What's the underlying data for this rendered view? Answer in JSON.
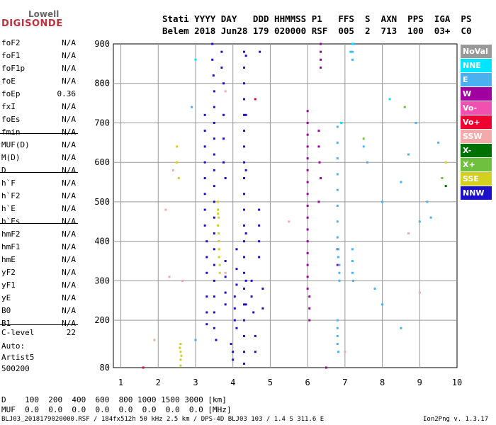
{
  "logo": {
    "line1": "Lowell",
    "line2": "DIGISONDE"
  },
  "header": {
    "line1": "Stati YYYY DAY   DDD HHMMSS P1   FFS  S  AXN  PPS  IGA  PS",
    "line2": "Belem 2018 Jun28 179 020000 RSF  005  2  713  100  03+  C0"
  },
  "params": [
    {
      "name": "foF2",
      "value": "N/A"
    },
    {
      "name": "foF1",
      "value": "N/A"
    },
    {
      "name": "foF1p",
      "value": "N/A"
    },
    {
      "name": "foE",
      "value": "N/A"
    },
    {
      "name": "foEp",
      "value": "0.36"
    },
    {
      "name": "fxI",
      "value": "N/A"
    },
    {
      "name": "foEs",
      "value": "N/A"
    },
    {
      "name": "fmin",
      "value": "N/A"
    },
    {
      "name": "MUF(D)",
      "value": "N/A"
    },
    {
      "name": "M(D)",
      "value": "N/A"
    },
    {
      "name": "D",
      "value": "N/A"
    },
    {
      "name": "h`F",
      "value": "N/A"
    },
    {
      "name": "h`F2",
      "value": "N/A"
    },
    {
      "name": "h`E",
      "value": "N/A"
    },
    {
      "name": "h`Es",
      "value": "N/A"
    },
    {
      "name": "hmF2",
      "value": "N/A"
    },
    {
      "name": "hmF1",
      "value": "N/A"
    },
    {
      "name": "hmE",
      "value": "N/A"
    },
    {
      "name": "yF2",
      "value": "N/A"
    },
    {
      "name": "yF1",
      "value": "N/A"
    },
    {
      "name": "yE",
      "value": "N/A"
    },
    {
      "name": "B0",
      "value": "N/A"
    },
    {
      "name": "B1",
      "value": "N/A"
    },
    {
      "name": "C-level",
      "value": "22"
    }
  ],
  "autoscaling": {
    "line1": "Auto:",
    "line2": "Artist5",
    "line3": "500200"
  },
  "legend": [
    {
      "label": "NoVal",
      "color": "#999999"
    },
    {
      "label": "NNE",
      "color": "#00e5ff"
    },
    {
      "label": "E",
      "color": "#4ab0f0"
    },
    {
      "label": "W",
      "color": "#a000a0"
    },
    {
      "label": "Vo-",
      "color": "#f050b0"
    },
    {
      "label": "Vo+",
      "color": "#ee0030"
    },
    {
      "label": "SSW",
      "color": "#f4aaaa"
    },
    {
      "label": "X-",
      "color": "#007000"
    },
    {
      "label": "X+",
      "color": "#70c040"
    },
    {
      "label": "SSE",
      "color": "#d4d020"
    },
    {
      "label": "NNW",
      "color": "#1c10c8"
    }
  ],
  "footer": {
    "d_line": "D    100  200  400  600  800 1000 1500 3000 [km]",
    "muf_line": "MUF  0.0  0.0  0.0  0.0  0.0  0.0  0.0  0.0 [MHz]",
    "file_info": "BLJ03_2018179020000.RSF / 184fx512h 50 kHz 2.5 km / DPS-4D BLJ03 103 / 1.4 S 311.6 E",
    "version": "Ion2Png v. 1.3.17"
  },
  "chart_data": {
    "type": "scatter",
    "xlim": [
      0.8,
      10
    ],
    "ylim": [
      80,
      900
    ],
    "x_ticks": [
      "1",
      "2",
      "3",
      "4",
      "5",
      "6",
      "7",
      "8",
      "9",
      "10"
    ],
    "y_ticks": [
      "80",
      "200",
      "300",
      "400",
      "500",
      "600",
      "700",
      "800",
      "900"
    ],
    "grid": true,
    "series": [
      {
        "name": "NNW",
        "color": "#1c10c8",
        "points": [
          [
            3.25,
            720
          ],
          [
            3.25,
            680
          ],
          [
            3.25,
            640
          ],
          [
            3.25,
            600
          ],
          [
            3.25,
            560
          ],
          [
            3.25,
            520
          ],
          [
            3.25,
            480
          ],
          [
            3.25,
            440
          ],
          [
            3.3,
            400
          ],
          [
            3.3,
            360
          ],
          [
            3.3,
            320
          ],
          [
            3.3,
            260
          ],
          [
            3.3,
            220
          ],
          [
            3.3,
            190
          ],
          [
            3.45,
            900
          ],
          [
            3.45,
            860
          ],
          [
            3.48,
            820
          ],
          [
            3.5,
            780
          ],
          [
            3.5,
            740
          ],
          [
            3.5,
            700
          ],
          [
            3.5,
            660
          ],
          [
            3.5,
            620
          ],
          [
            3.5,
            580
          ],
          [
            3.5,
            540
          ],
          [
            3.5,
            500
          ],
          [
            3.5,
            460
          ],
          [
            3.5,
            420
          ],
          [
            3.5,
            380
          ],
          [
            3.5,
            340
          ],
          [
            3.5,
            300
          ],
          [
            3.5,
            260
          ],
          [
            3.5,
            220
          ],
          [
            3.5,
            180
          ],
          [
            3.55,
            150
          ],
          [
            3.7,
            880
          ],
          [
            3.7,
            840
          ],
          [
            3.75,
            800
          ],
          [
            3.75,
            720
          ],
          [
            3.75,
            660
          ],
          [
            3.75,
            600
          ],
          [
            3.8,
            560
          ],
          [
            3.8,
            350
          ],
          [
            3.8,
            310
          ],
          [
            3.8,
            270
          ],
          [
            3.8,
            240
          ],
          [
            3.95,
            140
          ],
          [
            4.0,
            120
          ],
          [
            4.0,
            100
          ],
          [
            4.05,
            260
          ],
          [
            4.05,
            230
          ],
          [
            4.05,
            200
          ],
          [
            4.1,
            180
          ],
          [
            4.1,
            380
          ],
          [
            4.1,
            330
          ],
          [
            4.1,
            290
          ],
          [
            4.3,
            880
          ],
          [
            4.3,
            840
          ],
          [
            4.3,
            800
          ],
          [
            4.3,
            760
          ],
          [
            4.3,
            720
          ],
          [
            4.3,
            680
          ],
          [
            4.3,
            640
          ],
          [
            4.3,
            600
          ],
          [
            4.3,
            560
          ],
          [
            4.3,
            520
          ],
          [
            4.3,
            480
          ],
          [
            4.3,
            440
          ],
          [
            4.3,
            400
          ],
          [
            4.3,
            360
          ],
          [
            4.3,
            320
          ],
          [
            4.3,
            280
          ],
          [
            4.3,
            240
          ],
          [
            4.3,
            200
          ],
          [
            4.3,
            160
          ],
          [
            4.3,
            120
          ],
          [
            4.3,
            90
          ],
          [
            4.35,
            870
          ],
          [
            4.35,
            720
          ],
          [
            4.35,
            580
          ],
          [
            4.35,
            420
          ],
          [
            4.35,
            300
          ],
          [
            4.35,
            240
          ],
          [
            4.5,
            300
          ],
          [
            4.5,
            260
          ],
          [
            4.55,
            220
          ],
          [
            4.6,
            160
          ],
          [
            4.6,
            120
          ],
          [
            4.7,
            480
          ],
          [
            4.7,
            440
          ],
          [
            4.7,
            400
          ],
          [
            4.7,
            360
          ],
          [
            4.72,
            880
          ],
          [
            4.8,
            280
          ],
          [
            4.8,
            230
          ]
        ]
      },
      {
        "name": "SSE",
        "color": "#d4d020",
        "points": [
          [
            3.6,
            500
          ],
          [
            3.6,
            470
          ],
          [
            3.6,
            440
          ],
          [
            3.62,
            420
          ],
          [
            3.62,
            400
          ],
          [
            3.63,
            380
          ],
          [
            3.63,
            360
          ],
          [
            3.65,
            340
          ],
          [
            3.65,
            320
          ],
          [
            3.6,
            480
          ],
          [
            3.62,
            460
          ],
          [
            2.5,
            640
          ],
          [
            2.5,
            600
          ],
          [
            2.55,
            560
          ],
          [
            2.6,
            140
          ],
          [
            2.6,
            120
          ],
          [
            2.6,
            100
          ],
          [
            2.6,
            85
          ],
          [
            2.62,
            110
          ],
          [
            2.58,
            130
          ],
          [
            9.7,
            600
          ]
        ]
      },
      {
        "name": "W",
        "color": "#a000a0",
        "points": [
          [
            6.0,
            730
          ],
          [
            6.0,
            700
          ],
          [
            6.0,
            670
          ],
          [
            6.0,
            640
          ],
          [
            6.0,
            610
          ],
          [
            6.0,
            580
          ],
          [
            6.0,
            550
          ],
          [
            6.0,
            520
          ],
          [
            6.0,
            490
          ],
          [
            6.0,
            460
          ],
          [
            6.0,
            430
          ],
          [
            6.0,
            400
          ],
          [
            6.0,
            370
          ],
          [
            6.0,
            340
          ],
          [
            6.0,
            310
          ],
          [
            6.0,
            280
          ],
          [
            6.05,
            260
          ],
          [
            6.05,
            230
          ],
          [
            6.05,
            200
          ],
          [
            6.3,
            680
          ],
          [
            6.3,
            640
          ],
          [
            6.32,
            600
          ],
          [
            6.35,
            560
          ],
          [
            6.35,
            880
          ],
          [
            6.35,
            860
          ],
          [
            6.35,
            840
          ],
          [
            6.35,
            900
          ],
          [
            6.5,
            80
          ],
          [
            6.8,
            340
          ],
          [
            6.8,
            380
          ],
          [
            6.3,
            500
          ]
        ]
      },
      {
        "name": "E",
        "color": "#4ab0f0",
        "points": [
          [
            6.8,
            690
          ],
          [
            6.8,
            650
          ],
          [
            6.8,
            610
          ],
          [
            6.8,
            570
          ],
          [
            6.8,
            530
          ],
          [
            6.8,
            490
          ],
          [
            6.8,
            450
          ],
          [
            6.8,
            410
          ],
          [
            6.82,
            380
          ],
          [
            6.82,
            360
          ],
          [
            6.85,
            340
          ],
          [
            6.85,
            320
          ],
          [
            6.85,
            300
          ],
          [
            6.8,
            200
          ],
          [
            6.8,
            180
          ],
          [
            6.8,
            160
          ],
          [
            6.8,
            140
          ],
          [
            6.82,
            120
          ],
          [
            7.2,
            380
          ],
          [
            7.2,
            350
          ],
          [
            7.2,
            320
          ],
          [
            7.22,
            300
          ],
          [
            7.2,
            880
          ],
          [
            7.2,
            860
          ],
          [
            7.25,
            900
          ],
          [
            7.5,
            640
          ],
          [
            7.6,
            600
          ],
          [
            8.0,
            500
          ],
          [
            8.5,
            550
          ],
          [
            8.7,
            620
          ],
          [
            9.0,
            450
          ],
          [
            9.2,
            500
          ],
          [
            9.3,
            460
          ],
          [
            7.8,
            280
          ],
          [
            8.0,
            240
          ],
          [
            8.5,
            180
          ],
          [
            8.9,
            700
          ],
          [
            9.5,
            650
          ],
          [
            3.0,
            150
          ],
          [
            2.9,
            740
          ]
        ]
      },
      {
        "name": "NNE",
        "color": "#00e5ff",
        "points": [
          [
            7.2,
            900
          ],
          [
            7.15,
            880
          ],
          [
            3.0,
            860
          ],
          [
            6.9,
            700
          ],
          [
            8.2,
            760
          ]
        ]
      },
      {
        "name": "SSW",
        "color": "#f4aaaa",
        "points": [
          [
            2.4,
            580
          ],
          [
            2.2,
            480
          ],
          [
            1.9,
            150
          ],
          [
            2.3,
            310
          ],
          [
            3.8,
            780
          ],
          [
            5.5,
            450
          ],
          [
            7.0,
            120
          ],
          [
            8.7,
            420
          ],
          [
            9.0,
            270
          ],
          [
            2.65,
            300
          ],
          [
            3.8,
            320
          ]
        ]
      },
      {
        "name": "Vo+",
        "color": "#ee0030",
        "points": [
          [
            4.6,
            760
          ],
          [
            1.6,
            80
          ]
        ]
      },
      {
        "name": "X+",
        "color": "#70c040",
        "points": [
          [
            7.5,
            660
          ],
          [
            8.6,
            740
          ],
          [
            9.6,
            560
          ]
        ]
      },
      {
        "name": "X-",
        "color": "#007000",
        "points": [
          [
            9.7,
            540
          ]
        ]
      }
    ]
  }
}
